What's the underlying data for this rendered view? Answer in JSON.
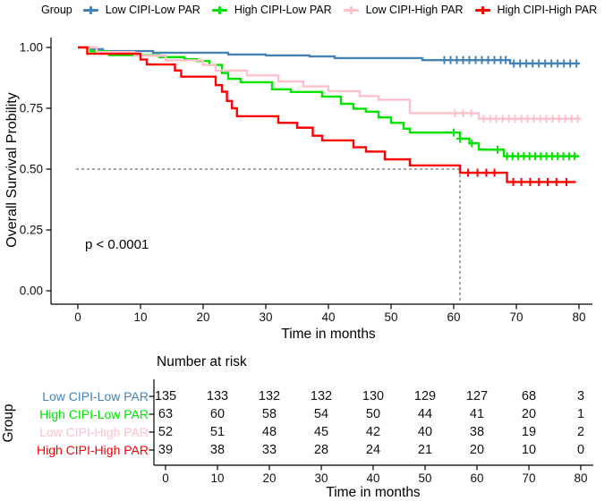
{
  "legend": {
    "title": "Group"
  },
  "chart_data": {
    "type": "line",
    "subtype": "kaplan-meier-step",
    "title": "",
    "xlabel": "Time in months",
    "ylabel": "Overall Survival Probility",
    "p_value": "p < 0.0001",
    "legend_title": "Group",
    "xlim": [
      0,
      80
    ],
    "ylim": [
      0,
      1
    ],
    "x_ticks": [
      "0",
      "10",
      "20",
      "30",
      "40",
      "50",
      "60",
      "70",
      "80"
    ],
    "y_ticks": [
      {
        "value": 1.0,
        "label": "1.00"
      },
      {
        "value": 0.75,
        "label": "0.75"
      },
      {
        "value": 0.5,
        "label": "0.50"
      },
      {
        "value": 0.25,
        "label": "0.25"
      },
      {
        "value": 0.0,
        "label": "0.00"
      }
    ],
    "grid": false,
    "legend_position": "top",
    "median_line": {
      "x": 61,
      "y": 0.5
    },
    "series": [
      {
        "name": "Low CIPI-Low PAR",
        "color": "#4682B4",
        "steps": [
          [
            0,
            1.0
          ],
          [
            2,
            0.993
          ],
          [
            4,
            0.985
          ],
          [
            12,
            0.978
          ],
          [
            24,
            0.971
          ],
          [
            30,
            0.967
          ],
          [
            37,
            0.963
          ],
          [
            41,
            0.956
          ],
          [
            55,
            0.948
          ],
          [
            69,
            0.934
          ],
          [
            80,
            0.934
          ]
        ],
        "censors": [
          58.5,
          59.5,
          60.5,
          61.5,
          62.5,
          63.5,
          64.5,
          65.5,
          66.5,
          67.5,
          68.3,
          69.6,
          70.6,
          71.6,
          72.6,
          73.6,
          74.6,
          75.6,
          76.6,
          77.6,
          78.6,
          79.6
        ]
      },
      {
        "name": "High CIPI-Low PAR",
        "color": "#00E400",
        "steps": [
          [
            0,
            1.0
          ],
          [
            2,
            0.984
          ],
          [
            5,
            0.968
          ],
          [
            13,
            0.96
          ],
          [
            17,
            0.952
          ],
          [
            19,
            0.944
          ],
          [
            21,
            0.928
          ],
          [
            23,
            0.895
          ],
          [
            24,
            0.871
          ],
          [
            26,
            0.857
          ],
          [
            31,
            0.828
          ],
          [
            34,
            0.817
          ],
          [
            39,
            0.798
          ],
          [
            42,
            0.768
          ],
          [
            44,
            0.748
          ],
          [
            46,
            0.736
          ],
          [
            48,
            0.712
          ],
          [
            50,
            0.69
          ],
          [
            52,
            0.666
          ],
          [
            53,
            0.65
          ],
          [
            61,
            0.625
          ],
          [
            62.5,
            0.606
          ],
          [
            64,
            0.58
          ],
          [
            68,
            0.553
          ],
          [
            80,
            0.553
          ]
        ],
        "censors": [
          60,
          61,
          62.9,
          67,
          68.5,
          69.4,
          70.3,
          71.2,
          72.1,
          73,
          73.9,
          74.8,
          75.7,
          76.6,
          77.5,
          78.4,
          79.3
        ]
      },
      {
        "name": "Low CIPI-High PAR",
        "color": "#FFC0CB",
        "steps": [
          [
            0,
            1.0
          ],
          [
            3,
            0.981
          ],
          [
            9,
            0.966
          ],
          [
            14,
            0.947
          ],
          [
            20,
            0.928
          ],
          [
            22,
            0.905
          ],
          [
            27,
            0.885
          ],
          [
            32,
            0.86
          ],
          [
            36,
            0.84
          ],
          [
            40,
            0.82
          ],
          [
            45,
            0.8
          ],
          [
            48,
            0.785
          ],
          [
            53,
            0.73
          ],
          [
            64,
            0.707
          ],
          [
            80,
            0.707
          ]
        ],
        "censors": [
          60.2,
          61.5,
          62.8,
          64.8,
          65.8,
          66.8,
          67.8,
          68.8,
          69.8,
          70.8,
          71.8,
          72.8,
          73.8,
          74.8,
          75.8,
          76.8,
          77.8,
          78.8,
          79.8
        ]
      },
      {
        "name": "High CIPI-High PAR",
        "color": "#FF0000",
        "steps": [
          [
            0,
            1.0
          ],
          [
            1.5,
            0.974
          ],
          [
            10,
            0.95
          ],
          [
            11,
            0.93
          ],
          [
            15.5,
            0.905
          ],
          [
            16.5,
            0.88
          ],
          [
            22,
            0.845
          ],
          [
            23,
            0.818
          ],
          [
            23.8,
            0.78
          ],
          [
            24.6,
            0.75
          ],
          [
            25.4,
            0.717
          ],
          [
            32,
            0.69
          ],
          [
            35,
            0.67
          ],
          [
            37.5,
            0.637
          ],
          [
            39,
            0.618
          ],
          [
            44,
            0.59
          ],
          [
            46,
            0.572
          ],
          [
            49,
            0.54
          ],
          [
            53,
            0.515
          ],
          [
            61,
            0.485
          ],
          [
            68.5,
            0.447
          ],
          [
            79.5,
            0.447
          ]
        ],
        "censors": [
          62.3,
          63.8,
          65.2,
          66.5,
          69.5,
          70.8,
          72.2,
          73.6,
          75,
          76.4,
          78
        ]
      }
    ]
  },
  "risk_table": {
    "title": "Number at risk",
    "group_label": "Group",
    "x_label": "Time in months",
    "x_ticks": [
      "0",
      "10",
      "20",
      "30",
      "40",
      "50",
      "60",
      "70",
      "80"
    ],
    "rows": [
      {
        "label": "Low CIPI-Low PAR",
        "color": "#4682B4",
        "values": [
          135,
          133,
          132,
          132,
          130,
          129,
          127,
          68,
          3
        ]
      },
      {
        "label": "High CIPI-Low PAR",
        "color": "#00E400",
        "values": [
          63,
          60,
          58,
          54,
          50,
          44,
          41,
          20,
          1
        ]
      },
      {
        "label": "Low CIPI-High PAR",
        "color": "#FFC0CB",
        "values": [
          52,
          51,
          48,
          45,
          42,
          40,
          38,
          19,
          2
        ]
      },
      {
        "label": "High CIPI-High PAR",
        "color": "#FF0000",
        "values": [
          39,
          38,
          33,
          28,
          24,
          21,
          20,
          10,
          0
        ]
      }
    ]
  }
}
